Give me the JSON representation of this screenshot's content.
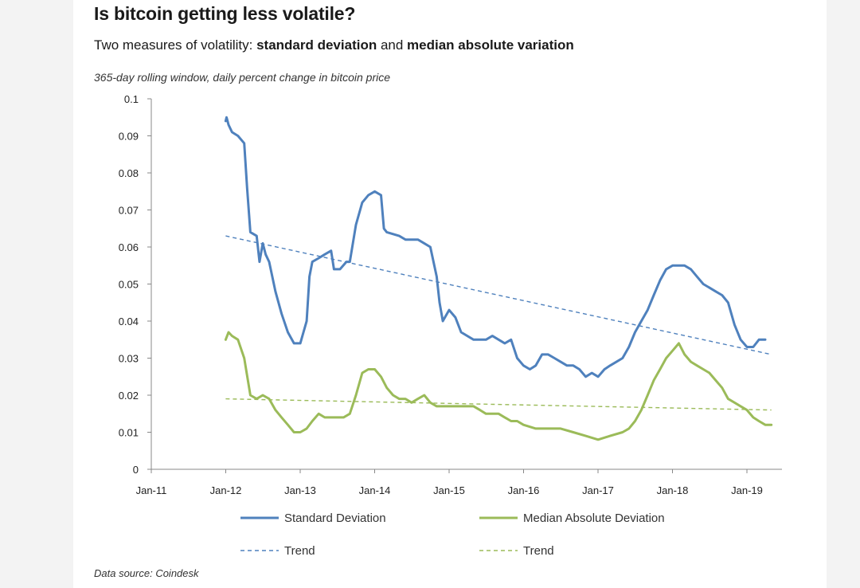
{
  "title": "Is bitcoin getting less volatile?",
  "subtitle": {
    "prefix": "Two measures of  volatility: ",
    "measure1": "standard deviation",
    "joiner": " and ",
    "measure2": "median absolute variation"
  },
  "note": "365-day rolling window, daily percent change in bitcoin price",
  "source": "Data source: Coindesk",
  "colors": {
    "std": "#4f81bd",
    "mad": "#9bbb59",
    "axis": "#888888",
    "background": "#ffffff"
  },
  "chart_data": {
    "type": "line",
    "x_axis": {
      "ticks": [
        "Jan-11",
        "Jan-12",
        "Jan-13",
        "Jan-14",
        "Jan-15",
        "Jan-16",
        "Jan-17",
        "Jan-18",
        "Jan-19"
      ],
      "range": [
        "2011-01",
        "2019-07"
      ]
    },
    "y_axis": {
      "ticks": [
        "0",
        "0.01",
        "0.02",
        "0.03",
        "0.04",
        "0.05",
        "0.06",
        "0.07",
        "0.08",
        "0.09",
        "0.1"
      ],
      "range": [
        0,
        0.1
      ]
    },
    "grid": false,
    "legend_position": "bottom",
    "series": [
      {
        "name": "Standard Deviation",
        "style": "solid",
        "color": "#4f81bd",
        "points": [
          [
            "2012-01-01",
            0.094
          ],
          [
            "2012-01-05",
            0.095
          ],
          [
            "2012-01-15",
            0.093
          ],
          [
            "2012-02-01",
            0.091
          ],
          [
            "2012-03-01",
            0.09
          ],
          [
            "2012-04-01",
            0.088
          ],
          [
            "2012-04-15",
            0.076
          ],
          [
            "2012-05-01",
            0.064
          ],
          [
            "2012-06-01",
            0.063
          ],
          [
            "2012-06-15",
            0.056
          ],
          [
            "2012-07-01",
            0.061
          ],
          [
            "2012-07-15",
            0.058
          ],
          [
            "2012-08-01",
            0.056
          ],
          [
            "2012-09-01",
            0.048
          ],
          [
            "2012-10-01",
            0.042
          ],
          [
            "2012-11-01",
            0.037
          ],
          [
            "2012-12-01",
            0.034
          ],
          [
            "2013-01-01",
            0.034
          ],
          [
            "2013-02-01",
            0.04
          ],
          [
            "2013-02-15",
            0.052
          ],
          [
            "2013-03-01",
            0.056
          ],
          [
            "2013-04-01",
            0.057
          ],
          [
            "2013-05-01",
            0.058
          ],
          [
            "2013-06-01",
            0.059
          ],
          [
            "2013-06-15",
            0.054
          ],
          [
            "2013-07-15",
            0.054
          ],
          [
            "2013-08-15",
            0.056
          ],
          [
            "2013-09-01",
            0.056
          ],
          [
            "2013-10-01",
            0.066
          ],
          [
            "2013-11-01",
            0.072
          ],
          [
            "2013-12-01",
            0.074
          ],
          [
            "2014-01-01",
            0.075
          ],
          [
            "2014-02-01",
            0.074
          ],
          [
            "2014-02-15",
            0.065
          ],
          [
            "2014-03-01",
            0.064
          ],
          [
            "2014-05-01",
            0.063
          ],
          [
            "2014-06-01",
            0.062
          ],
          [
            "2014-08-01",
            0.062
          ],
          [
            "2014-09-01",
            0.061
          ],
          [
            "2014-10-01",
            0.06
          ],
          [
            "2014-11-01",
            0.052
          ],
          [
            "2014-11-15",
            0.045
          ],
          [
            "2014-12-01",
            0.04
          ],
          [
            "2015-01-01",
            0.043
          ],
          [
            "2015-02-01",
            0.041
          ],
          [
            "2015-03-01",
            0.037
          ],
          [
            "2015-05-01",
            0.035
          ],
          [
            "2015-07-01",
            0.035
          ],
          [
            "2015-08-01",
            0.036
          ],
          [
            "2015-10-01",
            0.034
          ],
          [
            "2015-11-01",
            0.035
          ],
          [
            "2015-12-01",
            0.03
          ],
          [
            "2016-01-01",
            0.028
          ],
          [
            "2016-02-01",
            0.027
          ],
          [
            "2016-03-01",
            0.028
          ],
          [
            "2016-04-01",
            0.031
          ],
          [
            "2016-05-01",
            0.031
          ],
          [
            "2016-06-01",
            0.03
          ],
          [
            "2016-07-01",
            0.029
          ],
          [
            "2016-08-01",
            0.028
          ],
          [
            "2016-09-01",
            0.028
          ],
          [
            "2016-10-01",
            0.027
          ],
          [
            "2016-11-01",
            0.025
          ],
          [
            "2016-12-01",
            0.026
          ],
          [
            "2017-01-01",
            0.025
          ],
          [
            "2017-02-01",
            0.027
          ],
          [
            "2017-03-01",
            0.028
          ],
          [
            "2017-04-01",
            0.029
          ],
          [
            "2017-05-01",
            0.03
          ],
          [
            "2017-06-01",
            0.033
          ],
          [
            "2017-07-01",
            0.037
          ],
          [
            "2017-08-01",
            0.04
          ],
          [
            "2017-09-01",
            0.043
          ],
          [
            "2017-10-01",
            0.047
          ],
          [
            "2017-11-01",
            0.051
          ],
          [
            "2017-12-01",
            0.054
          ],
          [
            "2018-01-01",
            0.055
          ],
          [
            "2018-02-01",
            0.055
          ],
          [
            "2018-03-01",
            0.055
          ],
          [
            "2018-04-01",
            0.054
          ],
          [
            "2018-05-01",
            0.052
          ],
          [
            "2018-06-01",
            0.05
          ],
          [
            "2018-07-01",
            0.049
          ],
          [
            "2018-08-01",
            0.048
          ],
          [
            "2018-09-01",
            0.047
          ],
          [
            "2018-10-01",
            0.045
          ],
          [
            "2018-11-01",
            0.039
          ],
          [
            "2018-12-01",
            0.035
          ],
          [
            "2019-01-01",
            0.033
          ],
          [
            "2019-02-01",
            0.033
          ],
          [
            "2019-03-01",
            0.035
          ],
          [
            "2019-04-01",
            0.035
          ]
        ]
      },
      {
        "name": "Median Absolute Deviation",
        "style": "solid",
        "color": "#9bbb59",
        "points": [
          [
            "2012-01-01",
            0.035
          ],
          [
            "2012-01-15",
            0.037
          ],
          [
            "2012-02-01",
            0.036
          ],
          [
            "2012-03-01",
            0.035
          ],
          [
            "2012-04-01",
            0.03
          ],
          [
            "2012-05-01",
            0.02
          ],
          [
            "2012-06-01",
            0.019
          ],
          [
            "2012-07-01",
            0.02
          ],
          [
            "2012-08-01",
            0.019
          ],
          [
            "2012-09-01",
            0.016
          ],
          [
            "2012-10-01",
            0.014
          ],
          [
            "2012-11-01",
            0.012
          ],
          [
            "2012-12-01",
            0.01
          ],
          [
            "2013-01-01",
            0.01
          ],
          [
            "2013-02-01",
            0.011
          ],
          [
            "2013-03-01",
            0.013
          ],
          [
            "2013-04-01",
            0.015
          ],
          [
            "2013-05-01",
            0.014
          ],
          [
            "2013-06-01",
            0.014
          ],
          [
            "2013-07-01",
            0.014
          ],
          [
            "2013-08-01",
            0.014
          ],
          [
            "2013-09-01",
            0.015
          ],
          [
            "2013-10-01",
            0.02
          ],
          [
            "2013-11-01",
            0.026
          ],
          [
            "2013-12-01",
            0.027
          ],
          [
            "2014-01-01",
            0.027
          ],
          [
            "2014-02-01",
            0.025
          ],
          [
            "2014-03-01",
            0.022
          ],
          [
            "2014-04-01",
            0.02
          ],
          [
            "2014-05-01",
            0.019
          ],
          [
            "2014-06-01",
            0.019
          ],
          [
            "2014-07-01",
            0.018
          ],
          [
            "2014-08-01",
            0.019
          ],
          [
            "2014-09-01",
            0.02
          ],
          [
            "2014-10-01",
            0.018
          ],
          [
            "2014-11-01",
            0.017
          ],
          [
            "2015-01-01",
            0.017
          ],
          [
            "2015-03-01",
            0.017
          ],
          [
            "2015-05-01",
            0.017
          ],
          [
            "2015-06-01",
            0.016
          ],
          [
            "2015-07-01",
            0.015
          ],
          [
            "2015-09-01",
            0.015
          ],
          [
            "2015-10-01",
            0.014
          ],
          [
            "2015-11-01",
            0.013
          ],
          [
            "2015-12-01",
            0.013
          ],
          [
            "2016-01-01",
            0.012
          ],
          [
            "2016-03-01",
            0.011
          ],
          [
            "2016-05-01",
            0.011
          ],
          [
            "2016-07-01",
            0.011
          ],
          [
            "2016-09-01",
            0.01
          ],
          [
            "2016-11-01",
            0.009
          ],
          [
            "2017-01-01",
            0.008
          ],
          [
            "2017-03-01",
            0.009
          ],
          [
            "2017-05-01",
            0.01
          ],
          [
            "2017-06-01",
            0.011
          ],
          [
            "2017-07-01",
            0.013
          ],
          [
            "2017-08-01",
            0.016
          ],
          [
            "2017-09-01",
            0.02
          ],
          [
            "2017-10-01",
            0.024
          ],
          [
            "2017-11-01",
            0.027
          ],
          [
            "2017-12-01",
            0.03
          ],
          [
            "2018-01-01",
            0.032
          ],
          [
            "2018-02-01",
            0.034
          ],
          [
            "2018-03-01",
            0.031
          ],
          [
            "2018-04-01",
            0.029
          ],
          [
            "2018-05-01",
            0.028
          ],
          [
            "2018-06-01",
            0.027
          ],
          [
            "2018-07-01",
            0.026
          ],
          [
            "2018-08-01",
            0.024
          ],
          [
            "2018-09-01",
            0.022
          ],
          [
            "2018-10-01",
            0.019
          ],
          [
            "2018-11-01",
            0.018
          ],
          [
            "2018-12-01",
            0.017
          ],
          [
            "2019-01-01",
            0.016
          ],
          [
            "2019-02-01",
            0.014
          ],
          [
            "2019-03-01",
            0.013
          ],
          [
            "2019-04-01",
            0.012
          ],
          [
            "2019-05-01",
            0.012
          ]
        ]
      }
    ],
    "trends": [
      {
        "name": "Trend",
        "color": "#4f81bd",
        "style": "dashed",
        "points": [
          [
            "2012-01-01",
            0.063
          ],
          [
            "2019-05-01",
            0.031
          ]
        ]
      },
      {
        "name": "Trend",
        "color": "#9bbb59",
        "style": "dashed",
        "points": [
          [
            "2012-01-01",
            0.019
          ],
          [
            "2019-05-01",
            0.016
          ]
        ]
      }
    ],
    "legend": [
      {
        "label": "Standard Deviation",
        "color": "#4f81bd",
        "style": "solid"
      },
      {
        "label": "Median Absolute Deviation",
        "color": "#9bbb59",
        "style": "solid"
      },
      {
        "label": "Trend",
        "color": "#4f81bd",
        "style": "dashed"
      },
      {
        "label": "Trend",
        "color": "#9bbb59",
        "style": "dashed"
      }
    ]
  }
}
